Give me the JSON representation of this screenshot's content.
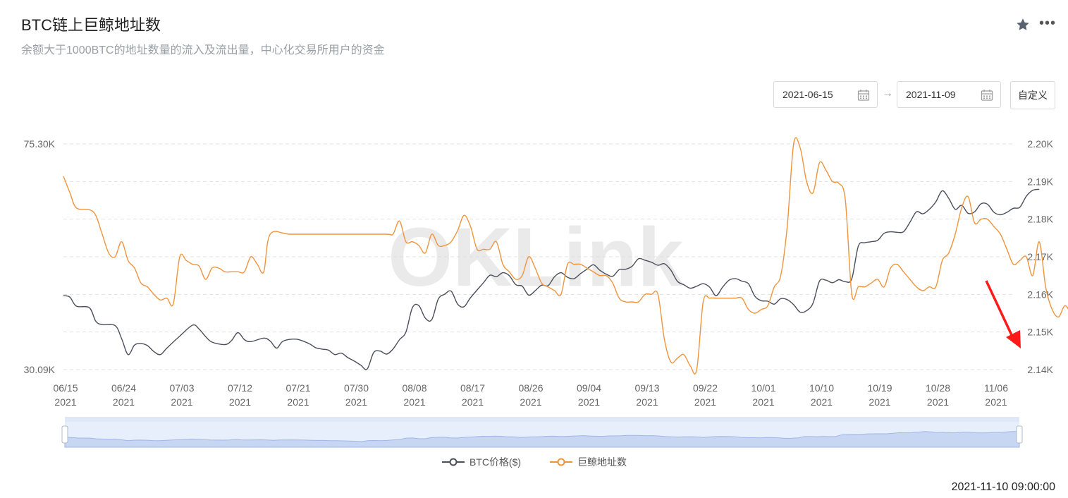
{
  "header": {
    "title": "BTC链上巨鲸地址数",
    "subtitle": "余额大于1000BTC的地址数量的流入及流出量，中心化交易所用户的资金"
  },
  "date_range": {
    "start": "2021-06-15",
    "end": "2021-11-09",
    "custom_label": "自定义"
  },
  "footer": {
    "timestamp": "2021-11-10 09:00:00"
  },
  "watermark": "OKLink",
  "colors": {
    "btc": "#4a4f5c",
    "whale": "#f0943c",
    "grid": "#e0e0e0",
    "annotation": "#ff1a1a"
  },
  "chart_data": {
    "type": "line",
    "x_tick_labels": [
      [
        "06/15",
        "2021"
      ],
      [
        "06/24",
        "2021"
      ],
      [
        "07/03",
        "2021"
      ],
      [
        "07/12",
        "2021"
      ],
      [
        "07/21",
        "2021"
      ],
      [
        "07/30",
        "2021"
      ],
      [
        "08/08",
        "2021"
      ],
      [
        "08/17",
        "2021"
      ],
      [
        "08/26",
        "2021"
      ],
      [
        "09/04",
        "2021"
      ],
      [
        "09/13",
        "2021"
      ],
      [
        "09/22",
        "2021"
      ],
      [
        "10/01",
        "2021"
      ],
      [
        "10/10",
        "2021"
      ],
      [
        "10/19",
        "2021"
      ],
      [
        "10/28",
        "2021"
      ],
      [
        "11/06",
        "2021"
      ]
    ],
    "x_range_days": [
      0,
      148
    ],
    "left_axis": {
      "labels": [
        "75.30K",
        "30.09K"
      ],
      "range": [
        30090,
        75300
      ]
    },
    "right_axis": {
      "labels": [
        "2.20K",
        "2.19K",
        "2.18K",
        "2.17K",
        "2.16K",
        "2.15K",
        "2.14K"
      ],
      "range": [
        2140,
        2200
      ]
    },
    "series": [
      {
        "name": "BTC价格($)",
        "axis": "left",
        "points": [
          [
            0,
            44900
          ],
          [
            1,
            44600
          ],
          [
            2,
            42800
          ],
          [
            4,
            42500
          ],
          [
            5,
            39800
          ],
          [
            6,
            39100
          ],
          [
            8,
            38900
          ],
          [
            9,
            36300
          ],
          [
            10,
            33100
          ],
          [
            11,
            35000
          ],
          [
            12,
            35300
          ],
          [
            13,
            34900
          ],
          [
            14,
            33700
          ],
          [
            15,
            33100
          ],
          [
            16,
            34400
          ],
          [
            18,
            36800
          ],
          [
            20,
            39000
          ],
          [
            21,
            38200
          ],
          [
            22,
            36700
          ],
          [
            23,
            35600
          ],
          [
            25,
            35100
          ],
          [
            26,
            35900
          ],
          [
            27,
            37500
          ],
          [
            28,
            36100
          ],
          [
            29,
            35700
          ],
          [
            31,
            36400
          ],
          [
            32,
            35800
          ],
          [
            33,
            34400
          ],
          [
            34,
            35800
          ],
          [
            36,
            36200
          ],
          [
            38,
            35300
          ],
          [
            39,
            34500
          ],
          [
            40,
            34200
          ],
          [
            41,
            34000
          ],
          [
            42,
            33100
          ],
          [
            43,
            33400
          ],
          [
            44,
            32500
          ],
          [
            45,
            31800
          ],
          [
            46,
            31000
          ],
          [
            47,
            30200
          ],
          [
            48,
            33500
          ],
          [
            49,
            33800
          ],
          [
            50,
            33200
          ],
          [
            51,
            34200
          ],
          [
            52,
            36100
          ],
          [
            53,
            37600
          ],
          [
            54,
            42500
          ],
          [
            55,
            42900
          ],
          [
            56,
            40400
          ],
          [
            57,
            40100
          ],
          [
            58,
            44200
          ],
          [
            59,
            45200
          ],
          [
            60,
            45800
          ],
          [
            61,
            43200
          ],
          [
            62,
            42700
          ],
          [
            63,
            44500
          ],
          [
            65,
            47500
          ],
          [
            66,
            49000
          ],
          [
            67,
            48700
          ],
          [
            68,
            49500
          ],
          [
            69,
            48900
          ],
          [
            70,
            47100
          ],
          [
            71,
            46800
          ],
          [
            72,
            45000
          ],
          [
            73,
            45900
          ],
          [
            74,
            47000
          ],
          [
            75,
            46900
          ],
          [
            76,
            48700
          ],
          [
            77,
            49500
          ],
          [
            78,
            48600
          ],
          [
            79,
            48300
          ],
          [
            80,
            49300
          ],
          [
            81,
            50200
          ],
          [
            82,
            51100
          ],
          [
            83,
            50000
          ],
          [
            84,
            49200
          ],
          [
            85,
            48800
          ],
          [
            86,
            50100
          ],
          [
            87,
            50200
          ],
          [
            88,
            50800
          ],
          [
            89,
            52300
          ],
          [
            90,
            52000
          ],
          [
            91,
            51600
          ],
          [
            92,
            51000
          ],
          [
            93,
            51300
          ],
          [
            94,
            50000
          ],
          [
            95,
            47800
          ],
          [
            96,
            47100
          ],
          [
            97,
            46400
          ],
          [
            98,
            46800
          ],
          [
            99,
            47300
          ],
          [
            100,
            46600
          ],
          [
            101,
            44900
          ],
          [
            102,
            46600
          ],
          [
            103,
            48000
          ],
          [
            104,
            48300
          ],
          [
            105,
            47800
          ],
          [
            106,
            47300
          ],
          [
            107,
            44800
          ],
          [
            108,
            43900
          ],
          [
            109,
            43800
          ],
          [
            110,
            43200
          ],
          [
            111,
            44300
          ],
          [
            112,
            44100
          ],
          [
            113,
            43100
          ],
          [
            114,
            41600
          ],
          [
            115,
            41900
          ],
          [
            116,
            43400
          ],
          [
            117,
            47800
          ],
          [
            118,
            48000
          ],
          [
            119,
            47500
          ],
          [
            120,
            48100
          ],
          [
            121,
            47700
          ],
          [
            122,
            48300
          ],
          [
            123,
            54800
          ],
          [
            124,
            55500
          ],
          [
            125,
            55700
          ],
          [
            126,
            56000
          ],
          [
            127,
            57400
          ],
          [
            128,
            57700
          ],
          [
            129,
            57600
          ],
          [
            130,
            57700
          ],
          [
            131,
            59600
          ],
          [
            132,
            61700
          ],
          [
            133,
            61300
          ],
          [
            134,
            62200
          ],
          [
            135,
            63700
          ],
          [
            136,
            65900
          ],
          [
            137,
            64400
          ],
          [
            138,
            62200
          ],
          [
            139,
            63000
          ],
          [
            140,
            61400
          ],
          [
            141,
            61700
          ],
          [
            142,
            63300
          ],
          [
            143,
            63200
          ],
          [
            144,
            61600
          ],
          [
            145,
            61100
          ],
          [
            146,
            61600
          ],
          [
            147,
            62400
          ],
          [
            148,
            62600
          ],
          [
            149,
            64800
          ],
          [
            150,
            66000
          ],
          [
            151,
            66200
          ]
        ]
      },
      {
        "name": "巨鲸地址数",
        "axis": "right",
        "points": [
          [
            0,
            2191.4
          ],
          [
            1,
            2187
          ],
          [
            2,
            2183
          ],
          [
            4,
            2182.5
          ],
          [
            5,
            2181
          ],
          [
            6,
            2176
          ],
          [
            7,
            2171
          ],
          [
            8,
            2170
          ],
          [
            9,
            2174
          ],
          [
            10,
            2169
          ],
          [
            11,
            2167
          ],
          [
            12,
            2163
          ],
          [
            13,
            2162
          ],
          [
            14,
            2160
          ],
          [
            15,
            2158.5
          ],
          [
            16,
            2159
          ],
          [
            17,
            2157.5
          ],
          [
            18,
            2170
          ],
          [
            19,
            2169
          ],
          [
            20,
            2168
          ],
          [
            21,
            2167.5
          ],
          [
            22,
            2164
          ],
          [
            23,
            2167
          ],
          [
            24,
            2167
          ],
          [
            25,
            2166
          ],
          [
            26,
            2166
          ],
          [
            27,
            2166
          ],
          [
            28,
            2166
          ],
          [
            29,
            2170
          ],
          [
            30,
            2168
          ],
          [
            31,
            2166
          ],
          [
            32,
            2176
          ],
          [
            35,
            2176
          ],
          [
            40,
            2176
          ],
          [
            45,
            2176
          ],
          [
            50,
            2176
          ],
          [
            51,
            2176
          ],
          [
            52,
            2179.5
          ],
          [
            53,
            2174
          ],
          [
            54,
            2174
          ],
          [
            55,
            2173
          ],
          [
            56,
            2171
          ],
          [
            57,
            2176
          ],
          [
            58,
            2173
          ],
          [
            59,
            2173
          ],
          [
            60,
            2174
          ],
          [
            61,
            2177
          ],
          [
            62,
            2181
          ],
          [
            63,
            2178
          ],
          [
            64,
            2172
          ],
          [
            65,
            2172
          ],
          [
            66,
            2172
          ],
          [
            67,
            2174
          ],
          [
            68,
            2168
          ],
          [
            69,
            2166
          ],
          [
            70,
            2164
          ],
          [
            71,
            2165
          ],
          [
            72,
            2170
          ],
          [
            73,
            2167
          ],
          [
            74,
            2163
          ],
          [
            75,
            2162
          ],
          [
            76,
            2161
          ],
          [
            77,
            2160
          ],
          [
            78,
            2168
          ],
          [
            79,
            2168
          ],
          [
            80,
            2168
          ],
          [
            81,
            2167
          ],
          [
            82,
            2166
          ],
          [
            83,
            2165
          ],
          [
            84,
            2165
          ],
          [
            85,
            2163
          ],
          [
            86,
            2159
          ],
          [
            87,
            2158
          ],
          [
            88,
            2158
          ],
          [
            89,
            2158
          ],
          [
            90,
            2160
          ],
          [
            91,
            2160
          ],
          [
            92,
            2160
          ],
          [
            93,
            2148
          ],
          [
            94,
            2142
          ],
          [
            95,
            2143
          ],
          [
            96,
            2144
          ],
          [
            97,
            2141
          ],
          [
            98,
            2140
          ],
          [
            99,
            2158
          ],
          [
            100,
            2159
          ],
          [
            101,
            2159
          ],
          [
            102,
            2159
          ],
          [
            103,
            2159
          ],
          [
            104,
            2159
          ],
          [
            105,
            2159
          ],
          [
            106,
            2156
          ],
          [
            107,
            2155
          ],
          [
            108,
            2156
          ],
          [
            109,
            2157
          ],
          [
            110,
            2162
          ],
          [
            111,
            2165
          ],
          [
            112,
            2178
          ],
          [
            113,
            2200
          ],
          [
            114,
            2199
          ],
          [
            115,
            2190
          ],
          [
            116,
            2187
          ],
          [
            117,
            2195
          ],
          [
            118,
            2193
          ],
          [
            119,
            2190
          ],
          [
            120,
            2189.5
          ],
          [
            121,
            2185
          ],
          [
            122,
            2160
          ],
          [
            123,
            2162
          ],
          [
            124,
            2162
          ],
          [
            125,
            2163
          ],
          [
            126,
            2164
          ],
          [
            127,
            2162
          ],
          [
            128,
            2167
          ],
          [
            129,
            2168
          ],
          [
            130,
            2166
          ],
          [
            131,
            2164
          ],
          [
            132,
            2162
          ],
          [
            133,
            2161
          ],
          [
            134,
            2162
          ],
          [
            135,
            2162
          ],
          [
            136,
            2169
          ],
          [
            137,
            2171
          ],
          [
            138,
            2176
          ],
          [
            139,
            2183
          ],
          [
            140,
            2186
          ],
          [
            141,
            2179
          ],
          [
            142,
            2180
          ],
          [
            143,
            2180
          ],
          [
            144,
            2178
          ],
          [
            145,
            2176
          ],
          [
            146,
            2172
          ],
          [
            147,
            2168
          ],
          [
            148,
            2169
          ],
          [
            149,
            2170
          ],
          [
            150,
            2165
          ],
          [
            151,
            2174
          ],
          [
            152,
            2162
          ],
          [
            153,
            2156
          ],
          [
            154,
            2154
          ],
          [
            155,
            2157
          ],
          [
            156,
            2154
          ],
          [
            157,
            2147
          ],
          [
            158,
            2147
          ],
          [
            159,
            2147
          ],
          [
            160,
            2146
          ]
        ]
      }
    ]
  },
  "legend": {
    "btc": "BTC价格($)",
    "whale": "巨鲸地址数"
  }
}
